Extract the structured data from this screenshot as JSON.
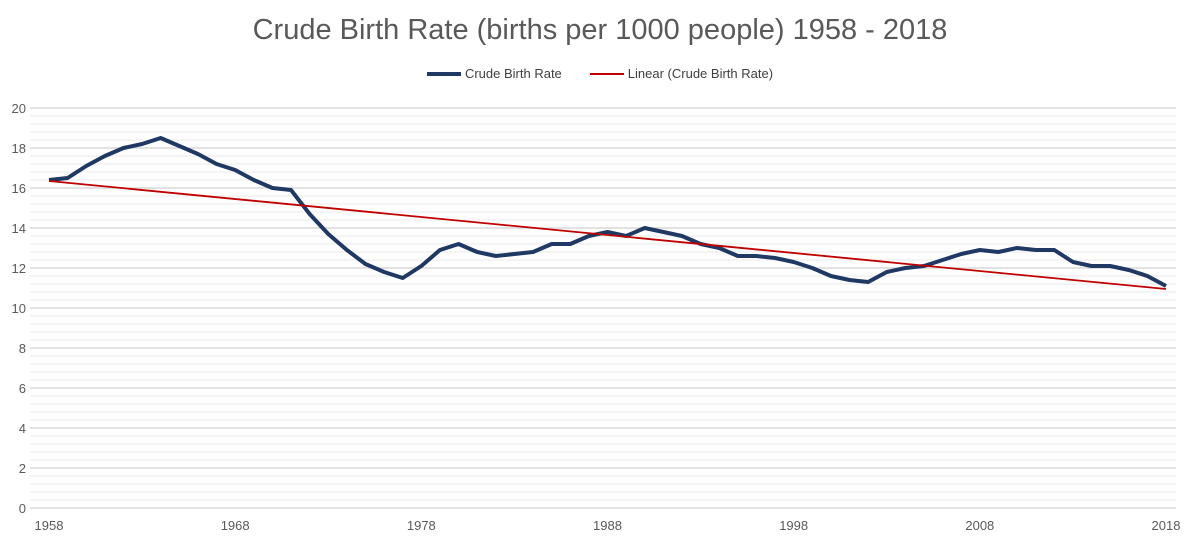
{
  "chart_data": {
    "type": "line",
    "title": "Crude Birth Rate (births per 1000 people) 1958 - 2018",
    "xlabel": "",
    "ylabel": "",
    "ylim": [
      0,
      20
    ],
    "xlim": [
      1958,
      2018
    ],
    "yticks": [
      "0",
      "2",
      "4",
      "6",
      "8",
      "10",
      "12",
      "14",
      "16",
      "18",
      "20"
    ],
    "xticks": [
      "1958",
      "1968",
      "1978",
      "1988",
      "1998",
      "2008",
      "2018"
    ],
    "grid": true,
    "legend": "top",
    "x": [
      1958,
      1959,
      1960,
      1961,
      1962,
      1963,
      1964,
      1965,
      1966,
      1967,
      1968,
      1969,
      1970,
      1971,
      1972,
      1973,
      1974,
      1975,
      1976,
      1977,
      1978,
      1979,
      1980,
      1981,
      1982,
      1983,
      1984,
      1985,
      1986,
      1987,
      1988,
      1989,
      1990,
      1991,
      1992,
      1993,
      1994,
      1995,
      1996,
      1997,
      1998,
      1999,
      2000,
      2001,
      2002,
      2003,
      2004,
      2005,
      2006,
      2007,
      2008,
      2009,
      2010,
      2011,
      2012,
      2013,
      2014,
      2015,
      2016,
      2017,
      2018
    ],
    "series": [
      {
        "name": "Crude Birth Rate",
        "color": "#1f3864",
        "values": [
          16.4,
          16.5,
          17.1,
          17.6,
          18.0,
          18.2,
          18.5,
          18.1,
          17.7,
          17.2,
          16.9,
          16.4,
          16.0,
          15.9,
          14.7,
          13.7,
          12.9,
          12.2,
          11.8,
          11.5,
          12.1,
          12.9,
          13.2,
          12.8,
          12.6,
          12.7,
          12.8,
          13.2,
          13.2,
          13.6,
          13.8,
          13.6,
          14.0,
          13.8,
          13.6,
          13.2,
          13.0,
          12.6,
          12.6,
          12.5,
          12.3,
          12.0,
          11.6,
          11.4,
          11.3,
          11.8,
          12.0,
          12.1,
          12.4,
          12.7,
          12.9,
          12.8,
          13.0,
          12.9,
          12.9,
          12.3,
          12.1,
          12.1,
          11.9,
          11.6,
          11.1
        ]
      },
      {
        "name": "Linear (Crude Birth Rate)",
        "color": "#c00000",
        "trendline": "linear",
        "values_endpoints": [
          16.35,
          10.95
        ]
      }
    ]
  }
}
